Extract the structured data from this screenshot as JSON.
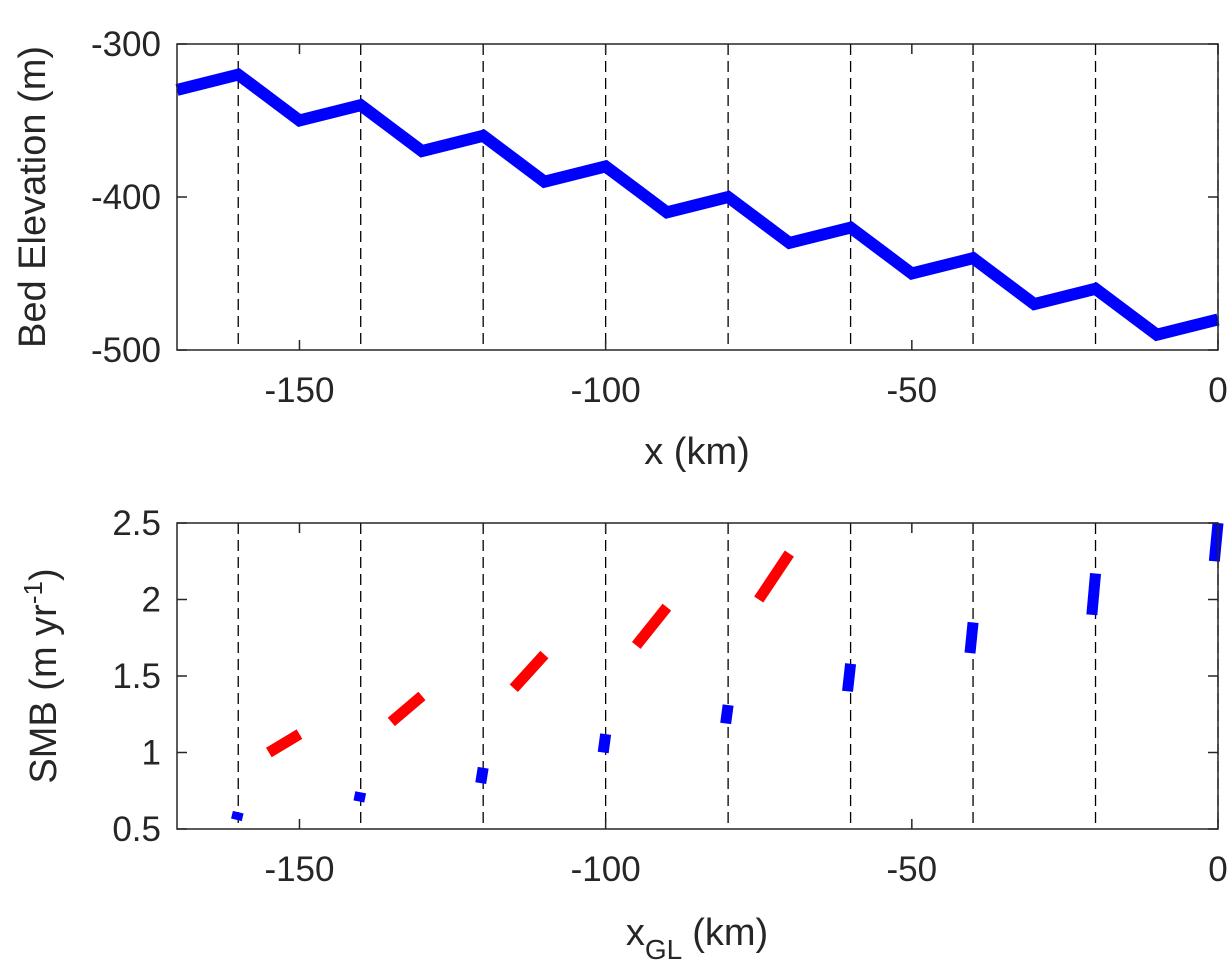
{
  "chart_data": [
    {
      "type": "line",
      "title": "",
      "xlabel": "x (km)",
      "ylabel": "Bed Elevation (m)",
      "xlim": [
        -170,
        0
      ],
      "ylim": [
        -500,
        -300
      ],
      "xticks": [
        -150,
        -100,
        -50,
        0
      ],
      "xtick_labels": [
        "-150",
        "-100",
        "-50",
        "0"
      ],
      "yticks": [
        -500,
        -400,
        -300
      ],
      "ytick_labels": [
        "-500",
        "-400",
        "-300"
      ],
      "grid": false,
      "line_color": "#0000ff",
      "reference_lines": {
        "style": "dashed",
        "color": "#000000",
        "x": [
          -160,
          -140,
          -120,
          -100,
          -80,
          -60,
          -40,
          -20,
          0
        ]
      },
      "series": [
        {
          "x": [
            -170,
            -160,
            -150,
            -140,
            -130,
            -120,
            -110,
            -100,
            -90,
            -80,
            -70,
            -60,
            -50,
            -40,
            -30,
            -20,
            -10,
            0
          ],
          "y": [
            -330,
            -320,
            -350,
            -340,
            -370,
            -360,
            -390,
            -380,
            -410,
            -400,
            -430,
            -420,
            -450,
            -440,
            -470,
            -460,
            -490,
            -480
          ]
        }
      ]
    },
    {
      "type": "line",
      "title": "",
      "xlabel_main": "x",
      "xlabel_sub": "GL",
      "xlabel_unit": "(km)",
      "ylabel_main": "SMB (m yr",
      "ylabel_sup": "-1",
      "ylabel_end": ")",
      "xlim": [
        -170,
        0
      ],
      "ylim": [
        0.5,
        2.5
      ],
      "xticks": [
        -150,
        -100,
        -50,
        0
      ],
      "xtick_labels": [
        "-150",
        "-100",
        "-50",
        "0"
      ],
      "yticks": [
        0.5,
        1,
        1.5,
        2,
        2.5
      ],
      "ytick_labels": [
        "0.5",
        "1",
        "1.5",
        "2",
        "2.5"
      ],
      "grid": false,
      "reference_lines": {
        "style": "dashed",
        "color": "#000000",
        "x": [
          -160,
          -140,
          -120,
          -100,
          -80,
          -60,
          -40,
          -20,
          0
        ]
      },
      "series": [
        {
          "color": "#ff0000",
          "segments": [
            {
              "x": [
                -155,
                -150
              ],
              "y": [
                1.0,
                1.12
              ]
            },
            {
              "x": [
                -135,
                -130
              ],
              "y": [
                1.2,
                1.37
              ]
            },
            {
              "x": [
                -115,
                -110
              ],
              "y": [
                1.42,
                1.64
              ]
            },
            {
              "x": [
                -95,
                -90
              ],
              "y": [
                1.7,
                1.95
              ]
            },
            {
              "x": [
                -75,
                -70
              ],
              "y": [
                2.0,
                2.3
              ]
            }
          ]
        },
        {
          "color": "#0000ff",
          "segments": [
            {
              "x": [
                -160.3,
                -160
              ],
              "y": [
                0.56,
                0.61
              ]
            },
            {
              "x": [
                -140.3,
                -140
              ],
              "y": [
                0.68,
                0.74
              ]
            },
            {
              "x": [
                -120.4,
                -120
              ],
              "y": [
                0.8,
                0.9
              ]
            },
            {
              "x": [
                -100.4,
                -100
              ],
              "y": [
                1.0,
                1.12
              ]
            },
            {
              "x": [
                -80.4,
                -80
              ],
              "y": [
                1.19,
                1.31
              ]
            },
            {
              "x": [
                -60.5,
                -60
              ],
              "y": [
                1.4,
                1.58
              ]
            },
            {
              "x": [
                -40.5,
                -40
              ],
              "y": [
                1.65,
                1.85
              ]
            },
            {
              "x": [
                -20.6,
                -20
              ],
              "y": [
                1.9,
                2.17
              ]
            },
            {
              "x": [
                -0.6,
                0
              ],
              "y": [
                2.25,
                2.5
              ]
            }
          ]
        }
      ]
    }
  ]
}
